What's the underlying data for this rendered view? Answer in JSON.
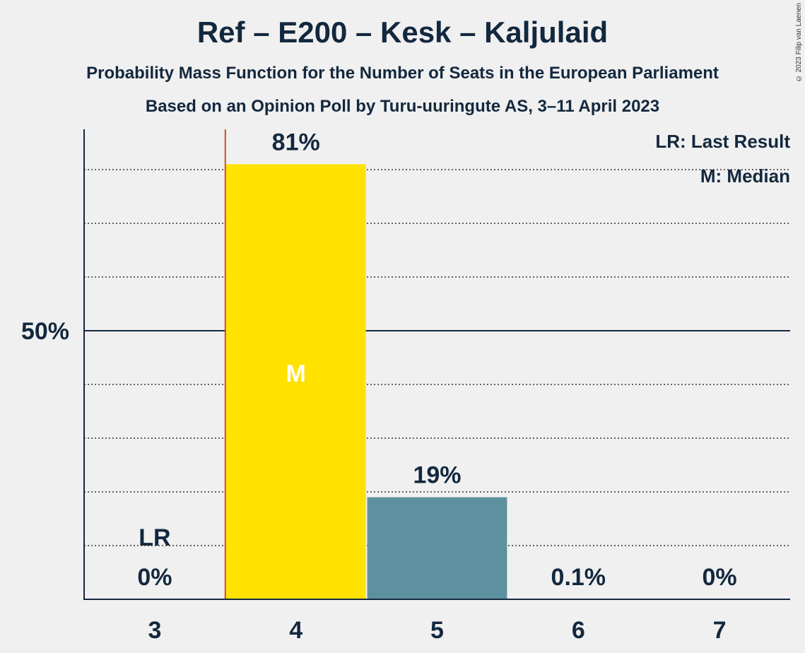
{
  "title": "Ref – E200 – Kesk – Kaljulaid",
  "subtitle": "Probability Mass Function for the Number of Seats in the European Parliament",
  "subtitle2": "Based on an Opinion Poll by Turu-uuringute AS, 3–11 April 2023",
  "copyright": "© 2023 Filip van Laenen",
  "legend": {
    "lr": "LR: Last Result",
    "median": "M: Median"
  },
  "colors": {
    "median_bar": "#ffe200",
    "bar": "#5e91a0",
    "last_result_line": "#c8501e",
    "axis": "#13283e"
  },
  "chart_data": {
    "type": "bar",
    "categories": [
      "3",
      "4",
      "5",
      "6",
      "7"
    ],
    "values": [
      0,
      81,
      19,
      0.1,
      0
    ],
    "value_labels": [
      "0%",
      "81%",
      "19%",
      "0.1%",
      "0%"
    ],
    "ylim": [
      0,
      87.5
    ],
    "y_ticks": [
      50
    ],
    "y_tick_labels": [
      "50%"
    ],
    "minor_grid_step": 10,
    "median_category": "4",
    "median_label": "M",
    "last_result_category": "3",
    "last_result_label": "LR"
  }
}
